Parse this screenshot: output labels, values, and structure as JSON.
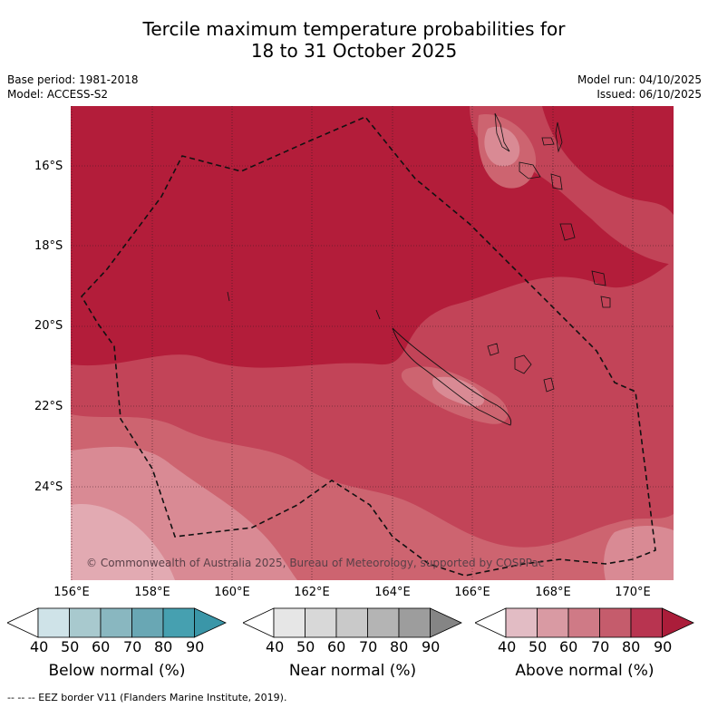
{
  "title_line1": "Tercile maximum temperature probabilities for",
  "title_line2": "18 to 31 October 2025",
  "base_period": "Base period: 1981-2018",
  "model": "Model: ACCESS-S2",
  "model_run": "Model run: 04/10/2025",
  "issued": "Issued: 06/10/2025",
  "lat_labels": [
    "16°S",
    "18°S",
    "20°S",
    "22°S",
    "24°S"
  ],
  "lon_labels": [
    "156°E",
    "158°E",
    "160°E",
    "162°E",
    "164°E",
    "166°E",
    "168°E",
    "170°E"
  ],
  "copyright": "© Commonwealth of Australia 2025, Bureau of Meteorology, supported by COSPPac",
  "colorbars": [
    {
      "label": "Below normal (%)",
      "ticks": [
        "40",
        "50",
        "60",
        "70",
        "80",
        "90"
      ],
      "colors": [
        "#ffffff",
        "#cfe3e8",
        "#a8c9ce",
        "#89b7c0",
        "#69a7b4",
        "#46a0b0",
        "#3a96a8"
      ]
    },
    {
      "label": "Near normal (%)",
      "ticks": [
        "40",
        "50",
        "60",
        "70",
        "80",
        "90"
      ],
      "colors": [
        "#ffffff",
        "#e6e6e6",
        "#d8d8d8",
        "#c9c9c9",
        "#b4b4b4",
        "#9d9d9d",
        "#858585"
      ]
    },
    {
      "label": "Above normal (%)",
      "ticks": [
        "40",
        "50",
        "60",
        "70",
        "80",
        "90"
      ],
      "colors": [
        "#ffffff",
        "#e2bcc4",
        "#d99aa3",
        "#cf7a86",
        "#c55c6c",
        "#b83450",
        "#ab1d3a"
      ]
    }
  ],
  "footer": "--  --  -- EEZ border V11 (Flanders Marine Institute, 2019)."
}
